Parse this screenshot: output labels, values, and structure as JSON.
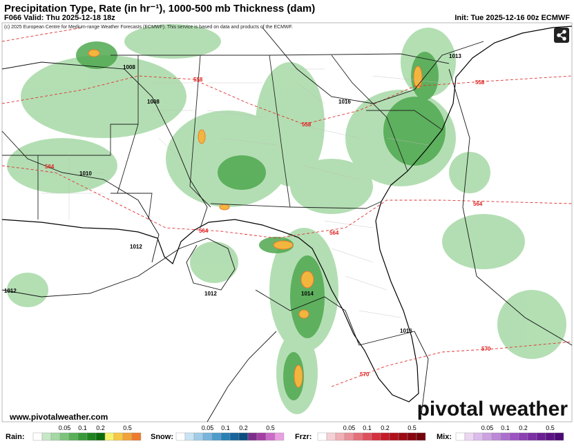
{
  "header": {
    "title": "Precipitation Type, Rate (in hr⁻¹), 1000-500 mb Thickness (dam)",
    "valid": "F066 Valid: Thu 2025-12-18 18z",
    "init": "Init: Tue 2025-12-16 00z ECMWF",
    "copyright": "(c) 2025 European Centre for Medium-range Weather Forecasts (ECMWF). This service is based on data and products of the ECMWF."
  },
  "map": {
    "isobar_labels": [
      1008,
      1008,
      1016,
      1013,
      1010,
      1012,
      1012,
      1012,
      1014,
      1016
    ],
    "thickness_labels": [
      558,
      558,
      558,
      564,
      564,
      564,
      564,
      570,
      570
    ],
    "website": "www.pivotalweather.com",
    "logo": "pivotal weather"
  },
  "legend": [
    {
      "label": "Rain:",
      "ticks": [
        0.05,
        0.1,
        0.2,
        0.5
      ],
      "colors": [
        "#ffffff",
        "#c6e8c6",
        "#a4d8a4",
        "#7cc47c",
        "#58b058",
        "#379a37",
        "#1f841f",
        "#0c6c0c",
        "#f6f26a",
        "#f6c846",
        "#f2a23a",
        "#ee7a2e"
      ]
    },
    {
      "label": "Snow:",
      "ticks": [
        0.05,
        0.1,
        0.2,
        0.5
      ],
      "colors": [
        "#ffffff",
        "#c8e4f4",
        "#a0cce8",
        "#78b4dc",
        "#4e9ccc",
        "#2a7fb6",
        "#17659c",
        "#0c4d80",
        "#7a2e8a",
        "#a43ea6",
        "#cc6ac8",
        "#eaa0e0"
      ]
    },
    {
      "label": "Frzr:",
      "ticks": [
        0.05,
        0.1,
        0.2,
        0.5
      ],
      "colors": [
        "#ffffff",
        "#f6d0d4",
        "#f0b0b6",
        "#ea9098",
        "#e4707a",
        "#de505c",
        "#d4303e",
        "#c41c28",
        "#b0101a",
        "#9c0a14",
        "#880610",
        "#74030c"
      ]
    },
    {
      "label": "Mix:",
      "ticks": [
        0.05,
        0.1,
        0.2,
        0.5
      ],
      "colors": [
        "#ffffff",
        "#ecd6f4",
        "#dcbcec",
        "#cca2e2",
        "#bc88d8",
        "#ac6ece",
        "#9c54c2",
        "#8c40b4",
        "#7c2ea4",
        "#6c1e94",
        "#5c1284",
        "#4c0874"
      ]
    }
  ]
}
